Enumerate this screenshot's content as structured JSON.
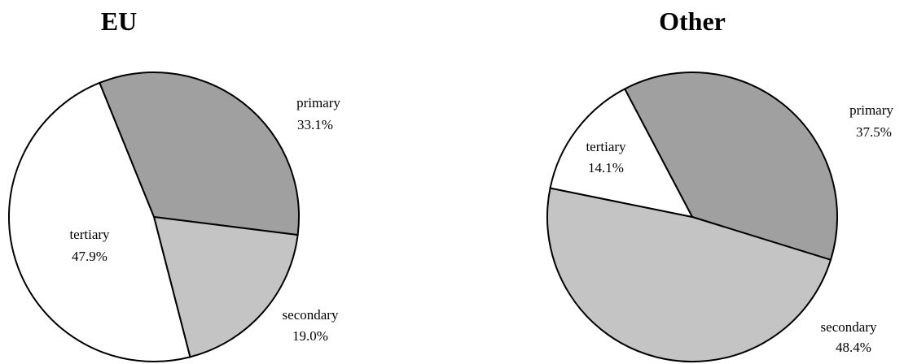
{
  "chart_data": [
    {
      "type": "pie",
      "title": "EU",
      "slices": [
        {
          "label": "primary",
          "value": 33.1,
          "display": "33.1%",
          "color": "#a0a0a0"
        },
        {
          "label": "secondary",
          "value": 19.0,
          "display": "19.0%",
          "color": "#c4c4c4"
        },
        {
          "label": "tertiary",
          "value": 47.9,
          "display": "47.9%",
          "color": "#ffffff"
        }
      ]
    },
    {
      "type": "pie",
      "title": "Other",
      "slices": [
        {
          "label": "primary",
          "value": 37.5,
          "display": "37.5%",
          "color": "#a0a0a0"
        },
        {
          "label": "secondary",
          "value": 48.4,
          "display": "48.4%",
          "color": "#c4c4c4"
        },
        {
          "label": "tertiary",
          "value": 14.1,
          "display": "14.1%",
          "color": "#ffffff"
        }
      ]
    }
  ]
}
